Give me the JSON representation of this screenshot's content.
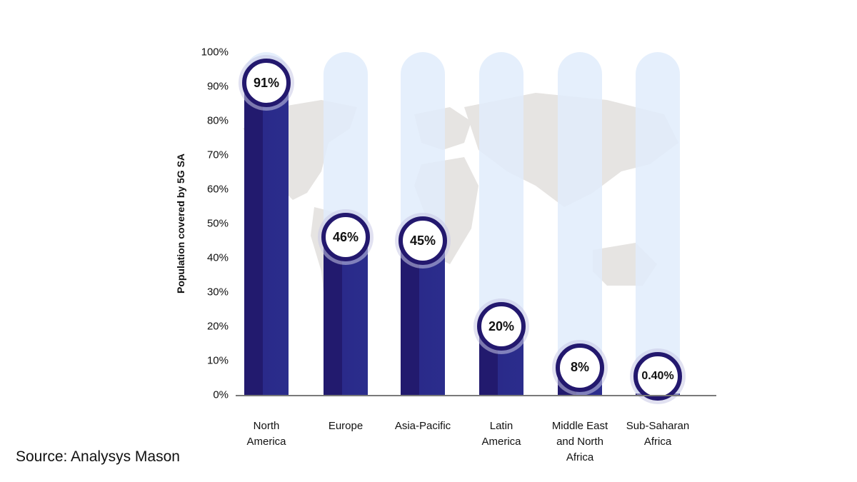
{
  "chart_data": {
    "type": "bar",
    "title": "",
    "xlabel": "",
    "ylabel": "Population covered by 5G SA",
    "ylim": [
      0,
      100
    ],
    "yticks": [
      "0%",
      "10%",
      "20%",
      "30%",
      "40%",
      "50%",
      "60%",
      "70%",
      "80%",
      "90%",
      "100%"
    ],
    "categories": [
      "North America",
      "Europe",
      "Asia-Pacific",
      "Latin America",
      "Middle East and North Africa",
      "Sub-Saharan Africa"
    ],
    "values": [
      91,
      46,
      45,
      20,
      8,
      0.4
    ],
    "value_labels": [
      "91%",
      "46%",
      "45%",
      "20%",
      "8%",
      "0.40%"
    ],
    "grid": false,
    "legend": null
  },
  "colors": {
    "bar_dark": "#221a6e",
    "bar_light": "#2b2d8c",
    "track": "#e1ecfc",
    "ring": "#23186e",
    "map": "#e5e3e1"
  },
  "source": "Source: Analysys Mason",
  "xlabels": [
    [
      "North",
      "America"
    ],
    [
      "Europe"
    ],
    [
      "Asia-Pacific"
    ],
    [
      "Latin",
      "America"
    ],
    [
      "Middle East",
      "and North",
      "Africa"
    ],
    [
      "Sub-Saharan",
      "Africa"
    ]
  ]
}
